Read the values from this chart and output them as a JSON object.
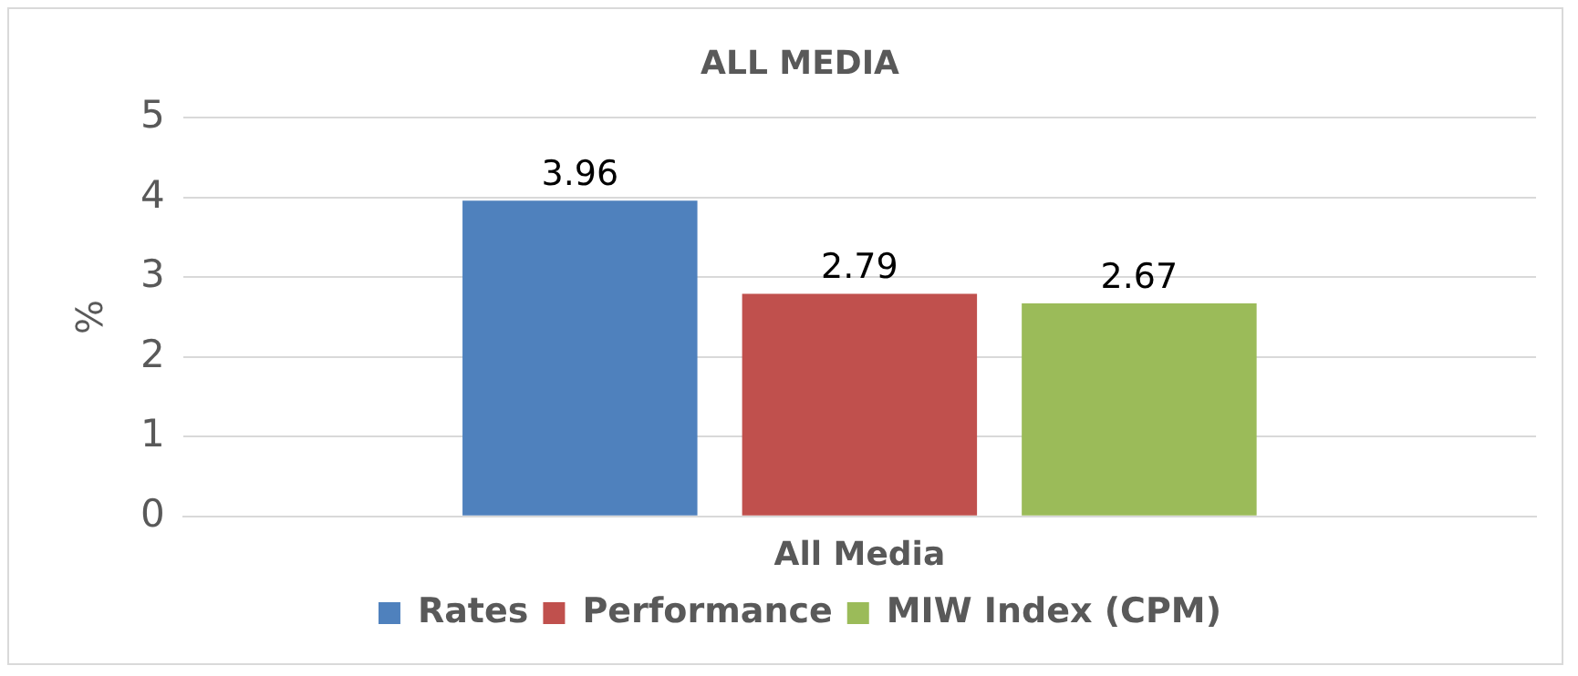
{
  "chart_data": {
    "type": "bar",
    "title": "ALL MEDIA",
    "ylabel": "%",
    "categories": [
      "All Media"
    ],
    "series": [
      {
        "name": "Rates",
        "color": "#4f81bd",
        "values": [
          3.96
        ]
      },
      {
        "name": "Performance",
        "color": "#c0504d",
        "values": [
          2.79
        ]
      },
      {
        "name": "MIW Index (CPM)",
        "color": "#9bbb59",
        "values": [
          2.67
        ]
      }
    ],
    "ylim": [
      0,
      5
    ],
    "yticks": [
      0,
      1,
      2,
      3,
      4,
      5
    ],
    "grid": "y",
    "legend": "bottom",
    "data_labels": true
  }
}
